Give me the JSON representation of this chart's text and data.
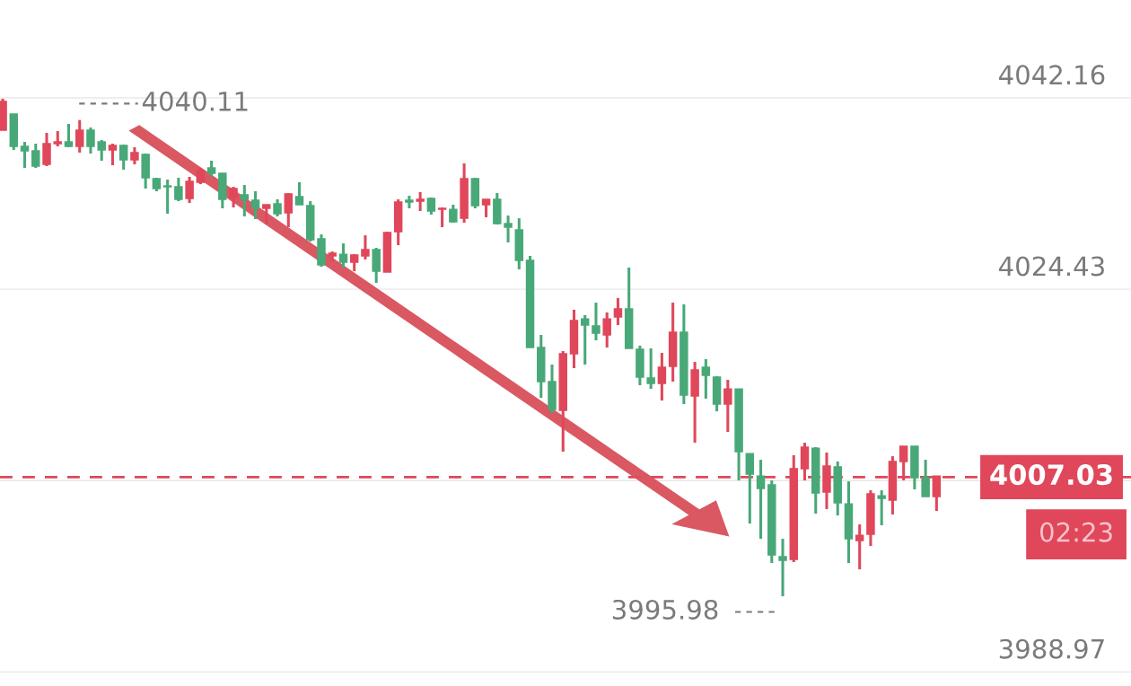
{
  "chart_data": {
    "type": "candlestick",
    "categories": [
      null,
      null,
      null,
      null,
      null,
      null,
      null,
      null,
      null,
      null,
      null,
      null,
      null,
      null,
      null,
      null,
      null,
      null,
      null,
      null,
      null,
      null,
      null,
      null,
      null,
      null,
      null,
      null,
      null,
      null,
      null,
      null,
      null,
      null,
      null,
      null,
      null,
      null,
      null,
      null,
      null,
      null,
      null,
      null,
      null,
      null,
      null,
      null,
      null,
      null,
      null,
      null,
      null,
      null,
      null,
      null,
      null,
      null,
      null,
      null,
      null,
      null,
      null,
      null,
      null,
      null,
      null,
      null,
      null,
      null,
      null,
      null,
      null,
      null,
      null,
      null,
      null,
      null,
      null,
      null,
      null,
      null,
      null,
      null,
      null,
      null
    ],
    "ohlc": [
      [
        4041.83,
        4042.08,
        4039.17,
        4039.17
      ],
      [
        4037.67,
        4040.66,
        4037.34,
        4040.66
      ],
      [
        4037.25,
        4038.08,
        4035.67,
        4037.67
      ],
      [
        4035.84,
        4037.92,
        4035.67,
        4037.25
      ],
      [
        4037.92,
        4038.92,
        4035.84,
        4036.0
      ],
      [
        4038.08,
        4039.08,
        4037.67,
        4037.92
      ],
      [
        4037.67,
        4039.75,
        4037.59,
        4038.08
      ],
      [
        4039.17,
        4040.11,
        4037.09,
        4037.67
      ],
      [
        4037.67,
        4039.42,
        4037.0,
        4039.17
      ],
      [
        4037.34,
        4038.25,
        4036.34,
        4038.08
      ],
      [
        4037.75,
        4037.92,
        4035.92,
        4037.34
      ],
      [
        4036.42,
        4037.83,
        4035.51,
        4037.75
      ],
      [
        4037.09,
        4037.59,
        4036.0,
        4036.42
      ],
      [
        4034.76,
        4037.0,
        4033.76,
        4036.92
      ],
      [
        4033.76,
        4034.76,
        4033.51,
        4034.67
      ],
      [
        4033.92,
        4034.59,
        4031.43,
        4034.01
      ],
      [
        4032.76,
        4034.76,
        4032.59,
        4033.92
      ],
      [
        4034.42,
        4034.84,
        4032.43,
        4032.84
      ],
      [
        4035.42,
        4035.67,
        4034.17,
        4034.34
      ],
      [
        4035.17,
        4036.34,
        4034.84,
        4035.67
      ],
      [
        4032.76,
        4035.17,
        4031.93,
        4035.17
      ],
      [
        4033.76,
        4033.92,
        4032.01,
        4032.93
      ],
      [
        4032.76,
        4034.09,
        4031.18,
        4033.18
      ],
      [
        4031.93,
        4033.51,
        4030.93,
        4032.68
      ],
      [
        4032.26,
        4032.26,
        4030.43,
        4031.93
      ],
      [
        4031.43,
        4032.76,
        4031.18,
        4032.34
      ],
      [
        4033.26,
        4033.34,
        4030.18,
        4031.51
      ],
      [
        4032.26,
        4034.34,
        4032.26,
        4033.01
      ],
      [
        4029.02,
        4032.59,
        4028.85,
        4032.18
      ],
      [
        4026.69,
        4029.51,
        4026.52,
        4029.1
      ],
      [
        4027.77,
        4027.93,
        4027.02,
        4027.52
      ],
      [
        4026.94,
        4028.68,
        4026.44,
        4027.68
      ],
      [
        4027.6,
        4027.68,
        4026.1,
        4026.94
      ],
      [
        4028.1,
        4029.43,
        4027.19,
        4027.52
      ],
      [
        4026.1,
        4028.27,
        4025.02,
        4028.1
      ],
      [
        4029.68,
        4029.76,
        4026.02,
        4026.02
      ],
      [
        4032.51,
        4032.76,
        4028.52,
        4029.76
      ],
      [
        4032.51,
        4033.09,
        4031.93,
        4032.68
      ],
      [
        4032.76,
        4033.43,
        4031.68,
        4032.59
      ],
      [
        4031.68,
        4032.93,
        4031.35,
        4032.84
      ],
      [
        4031.93,
        4032.01,
        4030.18,
        4031.84
      ],
      [
        4030.68,
        4032.26,
        4030.6,
        4031.84
      ],
      [
        4034.67,
        4036.09,
        4030.6,
        4031.01
      ],
      [
        4032.18,
        4034.76,
        4031.93,
        4034.67
      ],
      [
        4032.76,
        4032.76,
        4031.1,
        4032.26
      ],
      [
        4030.51,
        4033.34,
        4030.43,
        4032.76
      ],
      [
        4030.18,
        4031.26,
        4028.77,
        4030.51
      ],
      [
        4027.1,
        4031.01,
        4026.27,
        4029.93
      ],
      [
        4019.03,
        4027.52,
        4019.03,
        4027.1
      ],
      [
        4015.87,
        4020.2,
        4014.37,
        4019.03
      ],
      [
        4013.29,
        4017.45,
        4012.96,
        4015.87
      ],
      [
        4018.45,
        4018.7,
        4009.38,
        4013.21
      ],
      [
        4021.53,
        4022.53,
        4017.12,
        4018.45
      ],
      [
        4021.11,
        4022.03,
        4017.45,
        4021.69
      ],
      [
        4020.36,
        4023.19,
        4019.7,
        4021.03
      ],
      [
        4021.69,
        4022.28,
        4019.03,
        4020.2
      ],
      [
        4022.61,
        4023.61,
        4021.11,
        4021.86
      ],
      [
        4018.95,
        4026.44,
        4018.95,
        4022.61
      ],
      [
        4016.29,
        4019.2,
        4015.54,
        4018.87
      ],
      [
        4015.7,
        4018.95,
        4015.2,
        4016.2
      ],
      [
        4017.2,
        4018.53,
        4014.12,
        4015.7
      ],
      [
        4020.45,
        4023.19,
        4015.87,
        4017.28
      ],
      [
        4014.62,
        4023.03,
        4013.79,
        4020.45
      ],
      [
        4016.95,
        4017.7,
        4010.21,
        4014.54
      ],
      [
        4016.45,
        4017.95,
        4014.29,
        4017.2
      ],
      [
        4013.79,
        4016.37,
        4013.12,
        4016.29
      ],
      [
        4015.2,
        4016.04,
        4011.21,
        4013.79
      ],
      [
        4009.38,
        4015.2,
        4006.72,
        4015.2
      ],
      [
        4007.3,
        4009.21,
        4002.72,
        4009.21
      ],
      [
        4005.97,
        4008.63,
        4001.31,
        4007.13
      ],
      [
        3999.81,
        4006.72,
        3999.06,
        4006.3
      ],
      [
        3999.31,
        4001.31,
        3995.98,
        3999.65
      ],
      [
        4007.8,
        4009.05,
        3999.15,
        3999.4
      ],
      [
        4009.8,
        4010.21,
        4006.72,
        4007.8
      ],
      [
        4005.55,
        4009.8,
        4003.64,
        4009.71
      ],
      [
        4008.05,
        4009.3,
        4004.06,
        4005.64
      ],
      [
        4004.64,
        4008.47,
        4003.47,
        4007.97
      ],
      [
        4001.31,
        4006.63,
        3999.06,
        4004.55
      ],
      [
        4001.64,
        4002.64,
        3998.48,
        4001.14
      ],
      [
        4005.47,
        4005.8,
        4000.64,
        4001.73
      ],
      [
        4005.05,
        4005.8,
        4002.56,
        4005.3
      ],
      [
        4008.47,
        4008.96,
        4003.56,
        4004.89
      ],
      [
        4009.88,
        4009.88,
        4006.72,
        4008.47
      ],
      [
        4006.97,
        4009.88,
        4005.89,
        4009.88
      ],
      [
        4005.22,
        4008.63,
        4005.22,
        4006.97
      ],
      [
        4007.13,
        4007.13,
        4003.89,
        4005.22
      ]
    ],
    "colors": [
      "#e0475a",
      "#48a878",
      "#48a878",
      "#48a878",
      "#e0475a",
      "#e0475a",
      "#48a878",
      "#e0475a",
      "#48a878",
      "#48a878",
      "#e0475a",
      "#48a878",
      "#e0475a",
      "#48a878",
      "#48a878",
      "#48a878",
      "#48a878",
      "#e0475a",
      "#e0475a",
      "#48a878",
      "#48a878",
      "#e0475a",
      "#48a878",
      "#48a878",
      "#e0475a",
      "#48a878",
      "#e0475a",
      "#48a878",
      "#48a878",
      "#48a878",
      "#e0475a",
      "#48a878",
      "#e0475a",
      "#e0475a",
      "#48a878",
      "#e0475a",
      "#e0475a",
      "#48a878",
      "#e0475a",
      "#48a878",
      "#e0475a",
      "#48a878",
      "#e0475a",
      "#48a878",
      "#e0475a",
      "#48a878",
      "#48a878",
      "#48a878",
      "#48a878",
      "#48a878",
      "#48a878",
      "#e0475a",
      "#e0475a",
      "#48a878",
      "#48a878",
      "#e0475a",
      "#e0475a",
      "#48a878",
      "#48a878",
      "#48a878",
      "#e0475a",
      "#e0475a",
      "#48a878",
      "#e0475a",
      "#48a878",
      "#48a878",
      "#e0475a",
      "#48a878",
      "#48a878",
      "#48a878",
      "#48a878",
      "#48a878",
      "#e0475a",
      "#e0475a",
      "#48a878",
      "#e0475a",
      "#48a878",
      "#48a878",
      "#e0475a",
      "#e0475a",
      "#48a878",
      "#e0475a",
      "#e0475a",
      "#48a878",
      "#48a878",
      "#e0475a"
    ],
    "ylim": [
      3987.67,
      4051.23
    ],
    "yticks": [
      4042.16,
      4024.43,
      {
        "value": 4006.7,
        "label": null
      },
      3988.97
    ],
    "grid": "y",
    "tick_labels": "y",
    "ref_lines": [
      {
        "axis": "y",
        "value": 4007.03,
        "label": "4007.03",
        "color": "#e0475a",
        "line_style": "dashed"
      }
    ],
    "annotations": [
      "4040.11",
      "3995.98",
      "02:23"
    ]
  }
}
